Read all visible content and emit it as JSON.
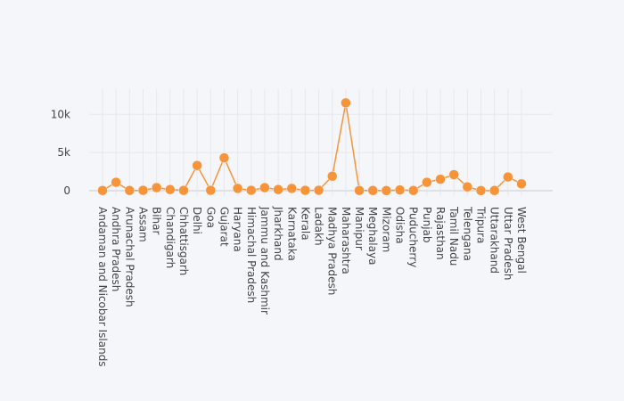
{
  "chart_data": {
    "type": "line",
    "title": "",
    "xlabel": "",
    "ylabel": "",
    "categories": [
      "Andaman and Nicobar Islands",
      "Andhra Pradesh",
      "Arunachal Pradesh",
      "Assam",
      "Bihar",
      "Chandigarh",
      "Chhattisgarh",
      "Delhi",
      "Goa",
      "Gujarat",
      "Haryana",
      "Himachal Pradesh",
      "Jammu and Kashmir",
      "Jharkhand",
      "Karnataka",
      "Kerala",
      "Ladakh",
      "Madhya Pradesh",
      "Maharashtra",
      "Manipur",
      "Meghalaya",
      "Mizoram",
      "Odisha",
      "Puducherry",
      "Punjab",
      "Rajasthan",
      "Tamil Nadu",
      "Telengana",
      "Tripura",
      "Uttarakhand",
      "Uttar Pradesh",
      "West Bengal"
    ],
    "series": [
      {
        "name": "",
        "color": "#f7943a",
        "values": [
          30,
          1100,
          30,
          50,
          400,
          150,
          40,
          3300,
          50,
          4300,
          300,
          50,
          400,
          150,
          300,
          50,
          60,
          1900,
          11500,
          30,
          30,
          20,
          100,
          30,
          1100,
          1500,
          2100,
          500,
          20,
          30,
          1800,
          900
        ]
      }
    ],
    "ylim": [
      -700,
      13300
    ],
    "yticks": [
      0,
      5000,
      10000
    ],
    "ytick_labels": [
      "0",
      "5k",
      "10k"
    ],
    "grid": true,
    "legend": "none"
  }
}
